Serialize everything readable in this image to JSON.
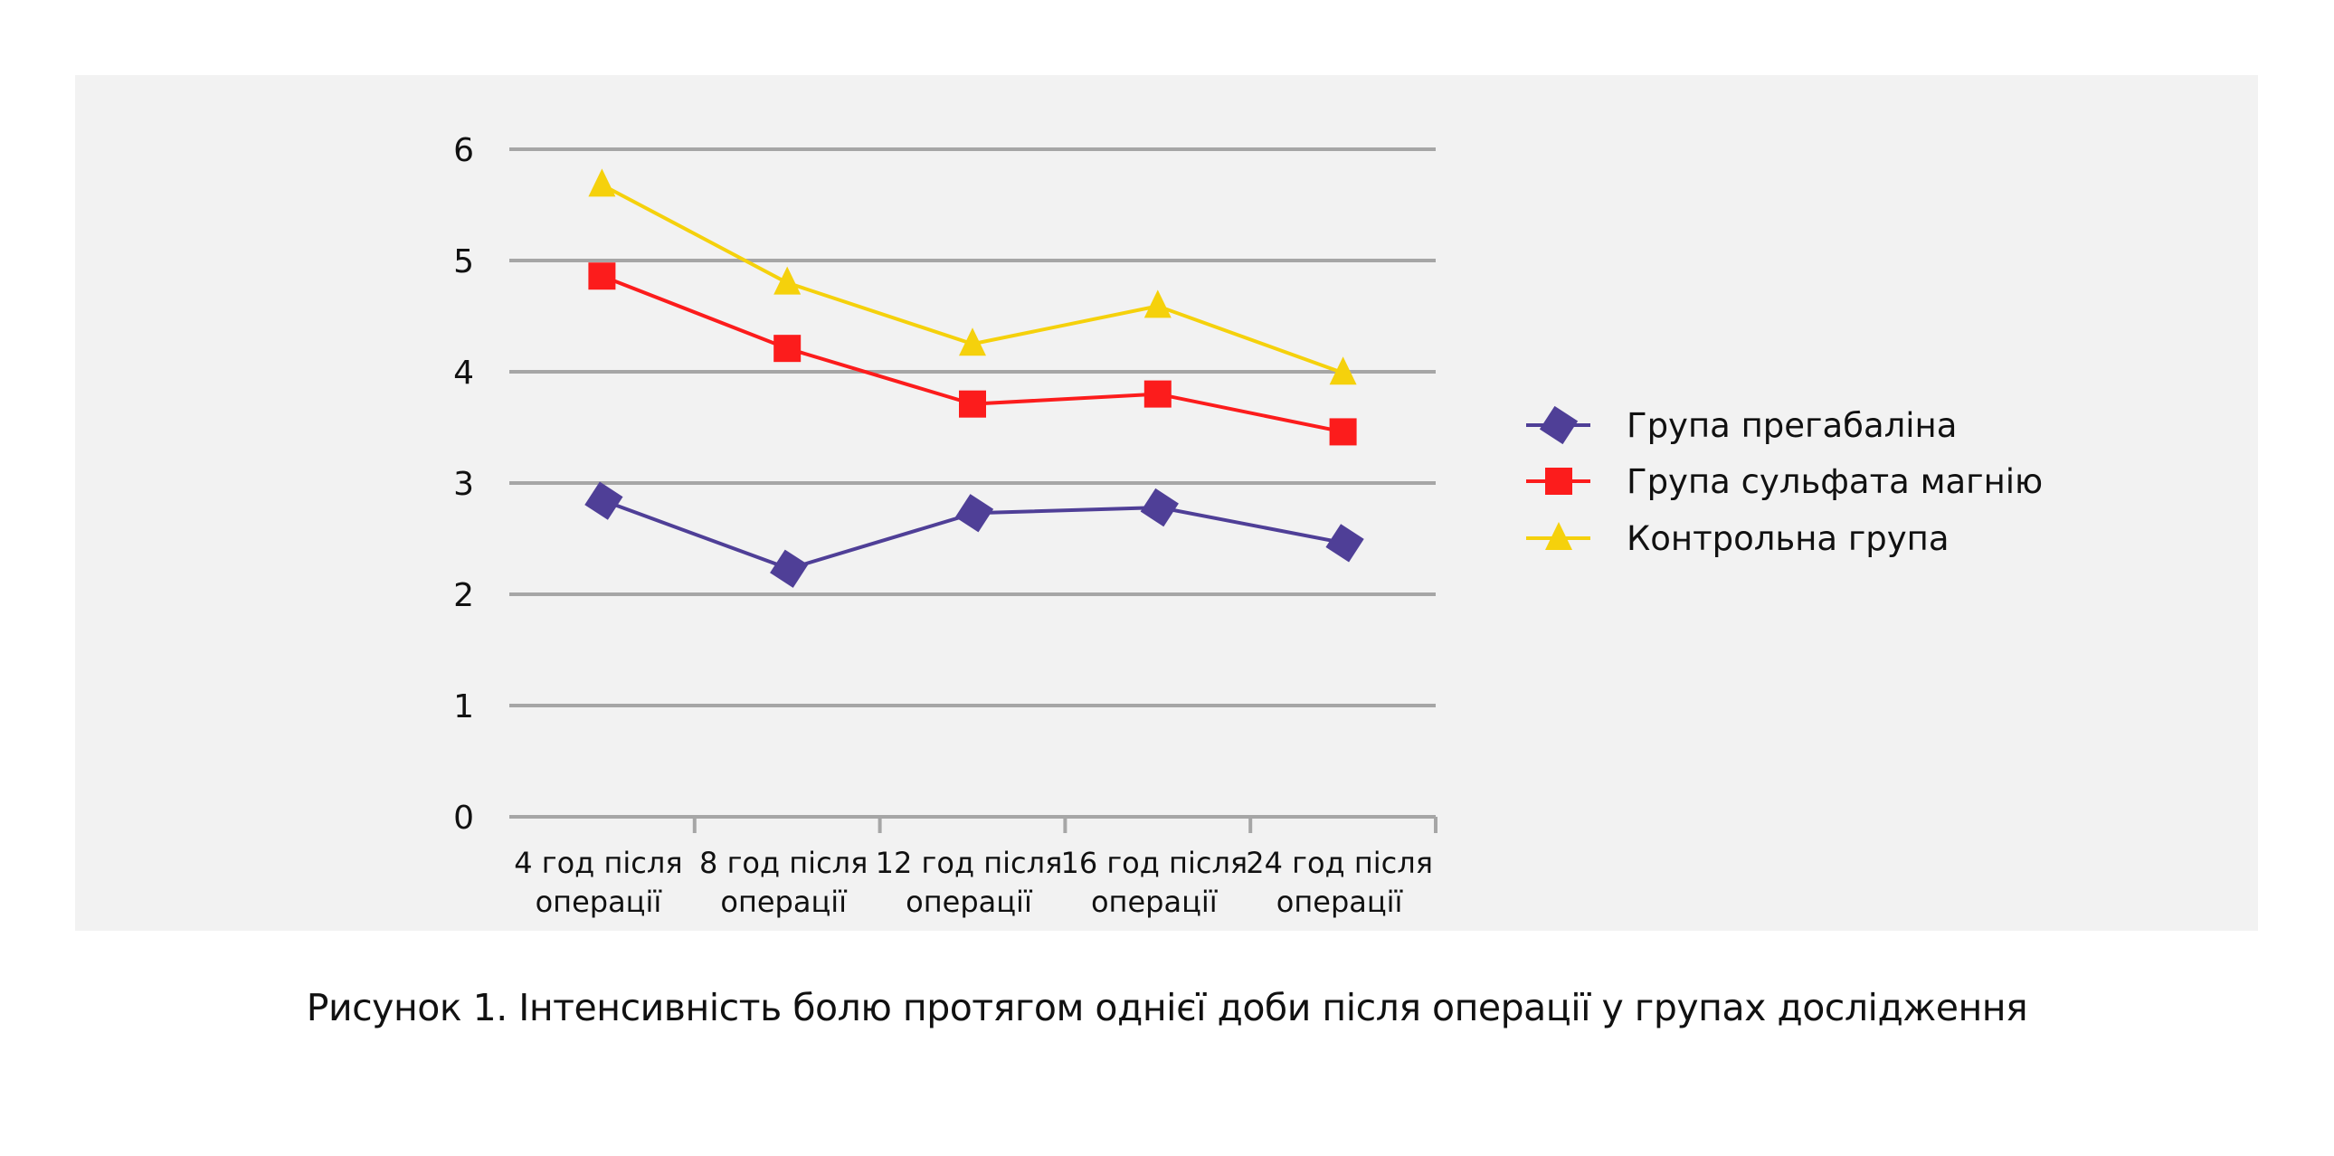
{
  "chart_data": {
    "type": "line",
    "title": "",
    "xlabel": "",
    "ylabel": "",
    "ylim": [
      0,
      6
    ],
    "yticks": [
      "0",
      "1",
      "2",
      "3",
      "4",
      "5",
      "6"
    ],
    "grid": true,
    "legend_position": "right",
    "categories": [
      [
        "4 год після",
        "операції"
      ],
      [
        "8 год після",
        "операції"
      ],
      [
        "12 год після",
        "операції"
      ],
      [
        "16 год після",
        "операції"
      ],
      [
        "24 год після",
        "операції"
      ]
    ],
    "series": [
      {
        "name": "Група прегабаліна",
        "marker": "diamond",
        "color": "#4f3f97",
        "values": [
          2.84,
          2.23,
          2.73,
          2.78,
          2.46
        ]
      },
      {
        "name": "Група сульфата магнію",
        "marker": "square",
        "color": "#fc1c1c",
        "values": [
          4.86,
          4.21,
          3.71,
          3.8,
          3.46
        ]
      },
      {
        "name": "Контрольна група",
        "marker": "triangle",
        "color": "#f5d10c",
        "values": [
          5.68,
          4.8,
          4.25,
          4.59,
          3.99
        ]
      }
    ],
    "gridline_color": "#a6a6a6",
    "background_color": "#f2f2f2"
  },
  "caption": "Рисунок 1. Інтенсивність болю протягом однієї доби після операції у групах дослідження"
}
